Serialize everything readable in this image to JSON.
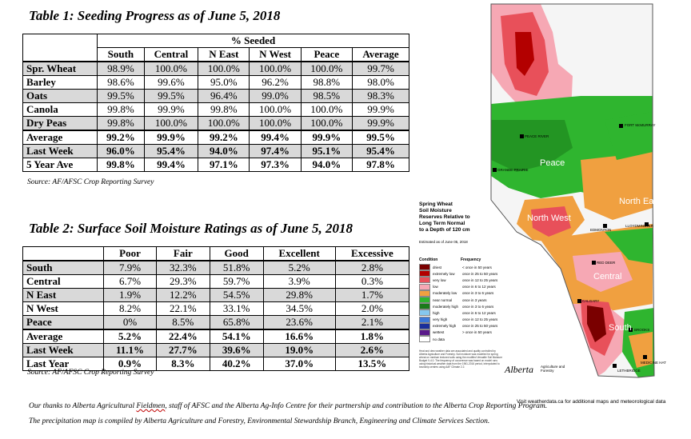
{
  "table1": {
    "title": "Table 1: Seeding Progress as of June 5, 2018",
    "group_header": "% Seeded",
    "columns": [
      "South",
      "Central",
      "N East",
      "N West",
      "Peace",
      "Average"
    ],
    "rows": [
      {
        "label": "Spr. Wheat",
        "values": [
          "98.9%",
          "100.0%",
          "100.0%",
          "100.0%",
          "100.0%",
          "99.7%"
        ]
      },
      {
        "label": "Barley",
        "values": [
          "98.6%",
          "99.6%",
          "95.0%",
          "96.2%",
          "98.8%",
          "98.0%"
        ]
      },
      {
        "label": "Oats",
        "values": [
          "99.5%",
          "99.5%",
          "96.4%",
          "99.0%",
          "98.5%",
          "98.3%"
        ]
      },
      {
        "label": "Canola",
        "values": [
          "99.8%",
          "99.9%",
          "99.8%",
          "100.0%",
          "100.0%",
          "99.9%"
        ]
      },
      {
        "label": "Dry Peas",
        "values": [
          "99.8%",
          "100.0%",
          "100.0%",
          "100.0%",
          "100.0%",
          "99.9%"
        ]
      },
      {
        "label": "Average",
        "values": [
          "99.2%",
          "99.9%",
          "99.2%",
          "99.4%",
          "99.9%",
          "99.5%"
        ]
      },
      {
        "label": "Last Week",
        "values": [
          "96.0%",
          "95.4%",
          "94.0%",
          "97.4%",
          "95.1%",
          "95.4%"
        ]
      },
      {
        "label": "5 Year Ave",
        "values": [
          "99.8%",
          "99.4%",
          "97.1%",
          "97.3%",
          "94.0%",
          "97.8%"
        ]
      }
    ],
    "source": "Source: AF/AFSC Crop Reporting Survey"
  },
  "table2": {
    "title": "Table 2: Surface Soil Moisture Ratings as of June 5, 2018",
    "columns": [
      "Poor",
      "Fair",
      "Good",
      "Excellent",
      "Excessive"
    ],
    "rows": [
      {
        "label": "South",
        "values": [
          "7.9%",
          "32.3%",
          "51.8%",
          "5.2%",
          "2.8%"
        ]
      },
      {
        "label": "Central",
        "values": [
          "6.7%",
          "29.3%",
          "59.7%",
          "3.9%",
          "0.3%"
        ]
      },
      {
        "label": "N East",
        "values": [
          "1.9%",
          "12.2%",
          "54.5%",
          "29.8%",
          "1.7%"
        ]
      },
      {
        "label": "N West",
        "values": [
          "8.2%",
          "22.1%",
          "33.1%",
          "34.5%",
          "2.0%"
        ]
      },
      {
        "label": "Peace",
        "values": [
          "0%",
          "8.5%",
          "65.8%",
          "23.6%",
          "2.1%"
        ]
      },
      {
        "label": "Average",
        "values": [
          "5.2%",
          "22.4%",
          "54.1%",
          "16.6%",
          "1.8%"
        ]
      },
      {
        "label": "Last Week",
        "values": [
          "11.1%",
          "27.7%",
          "39.6%",
          "19.0%",
          "2.6%"
        ]
      },
      {
        "label": "Last Year",
        "values": [
          "0.9%",
          "8.3%",
          "40.2%",
          "37.0%",
          "13.5%"
        ]
      }
    ],
    "source": "Source: AF/AFSC Crop Reporting Survey"
  },
  "footnotes": {
    "thanks_a": "Our thanks to Alberta Agricultural ",
    "thanks_b": "Fieldmen",
    "thanks_c": ", staff of AFSC and the Alberta Ag-Info Centre for their partnership and contribution to the Alberta Crop Reporting Program.",
    "precip": "The precipitation map is compiled by Alberta Agriculture and Forestry, Environmental Stewardship Branch, Engineering and Climate Services Section."
  },
  "map": {
    "title_lines": [
      "Spring Wheat",
      "Soil Moisture",
      "Reserves Relative to",
      "Long Term Normal",
      "to a Depth of 120 cm"
    ],
    "estimated": "Estimated as of June 05, 2018",
    "legend_condition_header": "Condition",
    "legend_frequency_header": "Frequency",
    "legend": [
      {
        "color": "#7a0000",
        "condition": "driest",
        "frequency": "< once in 50 years"
      },
      {
        "color": "#b30000",
        "condition": "extremely low",
        "frequency": "once in 25 to 50 years"
      },
      {
        "color": "#e8505a",
        "condition": "very low",
        "frequency": "once in 12 to 25 years"
      },
      {
        "color": "#f6a8b4",
        "condition": "low",
        "frequency": "once in 6 to 12 years"
      },
      {
        "color": "#f0a040",
        "condition": "moderately low",
        "frequency": "once in 3 to 6 years"
      },
      {
        "color": "#2fb52f",
        "condition": "near normal",
        "frequency": "once in 3 years"
      },
      {
        "color": "#1a7a1a",
        "condition": "moderately high",
        "frequency": "once in 3 to 6 years"
      },
      {
        "color": "#86c8ee",
        "condition": "high",
        "frequency": "once in 6 to 12 years"
      },
      {
        "color": "#3c78d8",
        "condition": "very high",
        "frequency": "once in 12 to 25 years"
      },
      {
        "color": "#1a2f9a",
        "condition": "extremely high",
        "frequency": "once in 25 to 50 years"
      },
      {
        "color": "#5a1a8a",
        "condition": "wettest",
        "frequency": "> once in 50 years"
      },
      {
        "color": "#ffffff",
        "condition": "no data",
        "frequency": ""
      }
    ],
    "regions": [
      "Peace",
      "North West",
      "North East",
      "Central",
      "South"
    ],
    "towns": [
      "FORT McMURRAY",
      "PEACE RIVER",
      "GRANDE PRAIRIE",
      "EDMONTON",
      "LLOYDMINSTER",
      "RED DEER",
      "CALGARY",
      "LETHBRIDGE",
      "MEDICINE HAT",
      "BROOKS"
    ],
    "logo_text": "Alberta",
    "logo_sub": "Agriculture and Forestry",
    "visit_text": "Visit weatherdata.ca for additional maps and meteorological data",
    "notes_text": "Heat and dew weather data are associated and quality controlled by Alberta Agriculture and Forestry. Soil moisture was modeled for spring wheat on medium textured soils using the modified Versatile Soil Moisture Budget V-4.0. The frequency of occurrence was based on model runs using historical weather data from the 1961-2016 period, interpolated to township centres using AAF Climate 2.2."
  }
}
